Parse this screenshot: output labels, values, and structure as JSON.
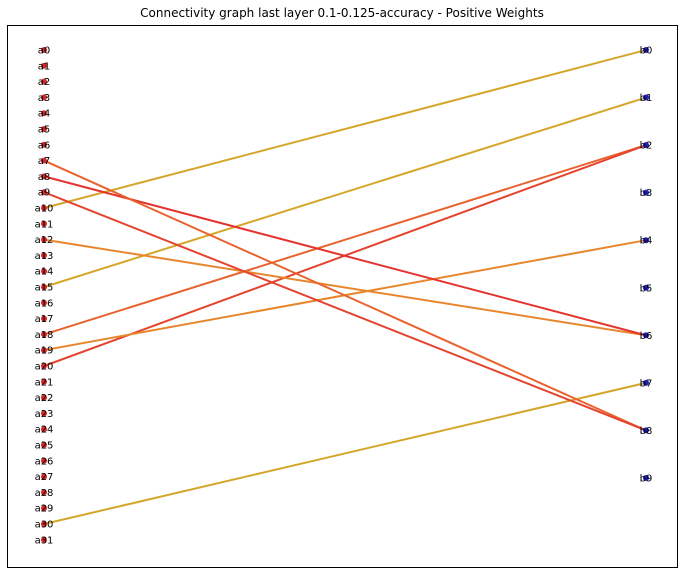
{
  "chart_data": {
    "type": "bipartite-graph",
    "title": "Connectivity graph last layer 0.1-0.125-accuracy - Positive Weights",
    "left_nodes": [
      "a0",
      "a1",
      "a2",
      "a3",
      "a4",
      "a5",
      "a6",
      "a7",
      "a8",
      "a9",
      "a10",
      "a11",
      "a12",
      "a13",
      "a14",
      "a15",
      "a16",
      "a17",
      "a18",
      "a19",
      "a20",
      "a21",
      "a22",
      "a23",
      "a24",
      "a25",
      "a26",
      "a27",
      "a28",
      "a29",
      "a30",
      "a31"
    ],
    "right_nodes": [
      "b0",
      "b1",
      "b2",
      "b3",
      "b4",
      "b5",
      "b6",
      "b7",
      "b8",
      "b9"
    ],
    "left_node_color": "#d62728",
    "right_node_color": "#1f1fbf",
    "edges": [
      {
        "from": "a10",
        "to": "b0",
        "color": "#d4a62a"
      },
      {
        "from": "a15",
        "to": "b1",
        "color": "#d4a62a"
      },
      {
        "from": "a18",
        "to": "b2",
        "color": "#e8622e"
      },
      {
        "from": "a20",
        "to": "b2",
        "color": "#e4432e"
      },
      {
        "from": "a19",
        "to": "b4",
        "color": "#e8862e"
      },
      {
        "from": "a12",
        "to": "b6",
        "color": "#e8862e"
      },
      {
        "from": "a8",
        "to": "b6",
        "color": "#e4332e"
      },
      {
        "from": "a30",
        "to": "b7",
        "color": "#d4a62a"
      },
      {
        "from": "a7",
        "to": "b8",
        "color": "#e8622e"
      },
      {
        "from": "a9",
        "to": "b8",
        "color": "#e4432e"
      }
    ],
    "grid": false
  }
}
